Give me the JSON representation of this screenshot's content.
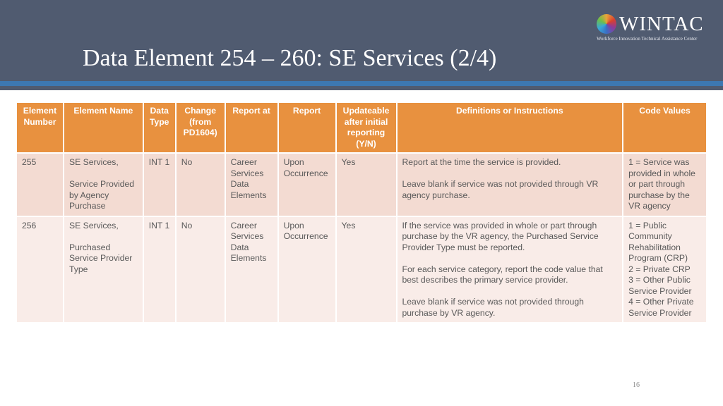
{
  "title": "Data Element 254 – 260: SE Services (2/4)",
  "logo": {
    "word": "WINTAC",
    "sub": "Workforce Innovation Technical Assistance Center"
  },
  "columns": [
    "Element Number",
    "Element Name",
    "Data Type",
    "Change (from PD1604)",
    "Report at",
    "Report",
    "Updateable after initial reporting (Y/N)",
    "Definitions or Instructions",
    "Code Values"
  ],
  "rows": [
    {
      "number": "255",
      "name": [
        "SE Services,",
        "Service Provided by Agency Purchase"
      ],
      "type": "INT 1",
      "change": "No",
      "report_at": "Career Services Data Elements",
      "report": "Upon Occurrence",
      "updateable": "Yes",
      "definitions": [
        "Report at the time the service is provided.",
        "Leave blank if service was not provided through VR agency purchase."
      ],
      "codes": [
        "1 = Service was provided in whole or part through purchase by the VR agency"
      ]
    },
    {
      "number": "256",
      "name": [
        "SE Services,",
        "Purchased Service Provider Type"
      ],
      "type": "INT 1",
      "change": "No",
      "report_at": "Career Services Data Elements",
      "report": "Upon Occurrence",
      "updateable": "Yes",
      "definitions": [
        "If the service was provided in whole or part through purchase by the VR agency, the Purchased Service Provider Type must be reported.",
        "For each service category, report the code value that best describes the primary service provider.",
        "Leave blank if service was not provided through purchase by VR agency."
      ],
      "codes": [
        "1 = Public Community Rehabilitation Program (CRP)",
        "2 = Private CRP",
        "3 = Other Public Service Provider",
        "4 = Other Private Service Provider"
      ]
    }
  ],
  "page_number": "16",
  "colors": {
    "header_bg": "#505b70",
    "accent_stripe": "#3d78b2",
    "table_header": "#e8913f",
    "row_odd": "#f3dbd2",
    "row_even": "#f9ece8"
  }
}
